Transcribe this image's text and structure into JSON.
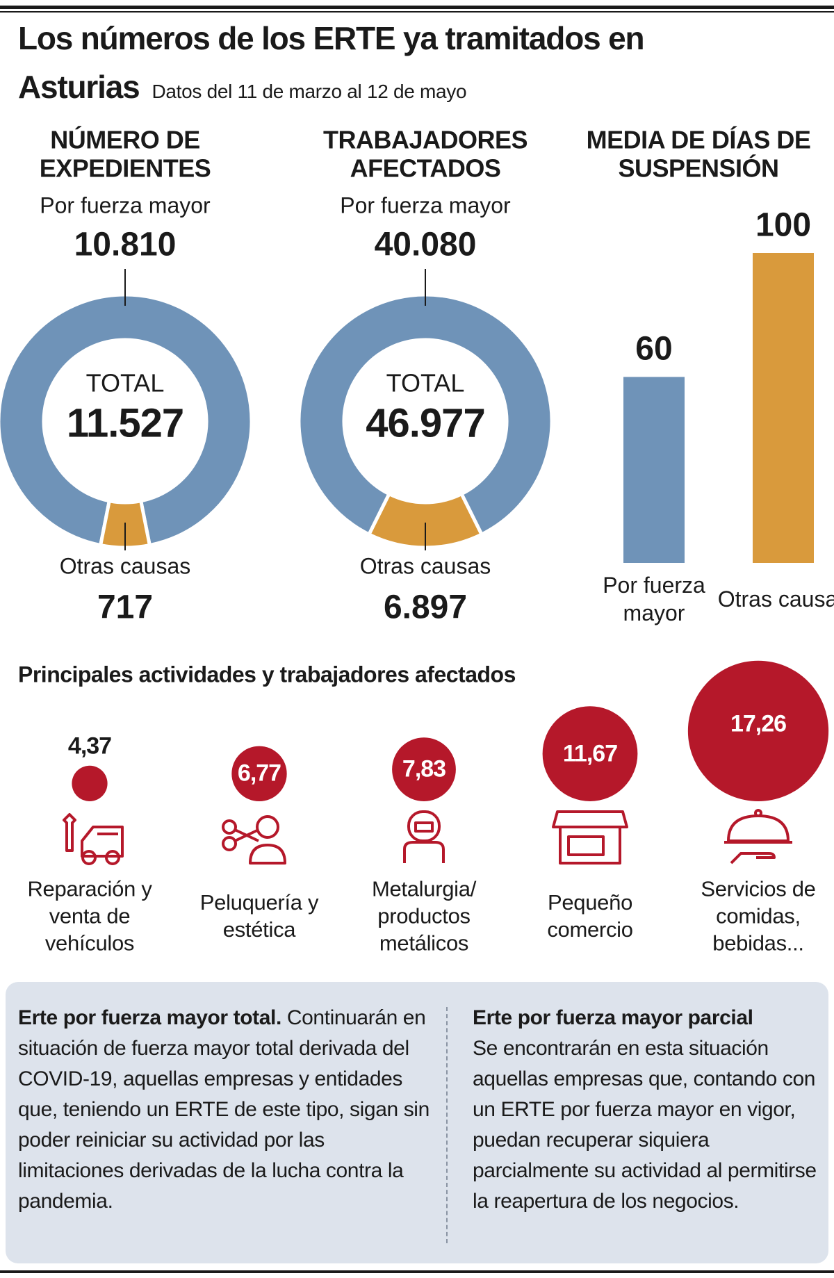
{
  "header": {
    "title": "Los números de los ERTE ya tramitados en Asturias",
    "subtitle": "Datos del 11 de marzo al 12 de mayo"
  },
  "chart_data": [
    {
      "type": "donut",
      "title": "NÚMERO DE EXPEDIENTES",
      "categories": [
        "Por fuerza mayor",
        "Otras causas"
      ],
      "values": [
        10810,
        717
      ],
      "value_labels": [
        "10.810",
        "717"
      ],
      "colors": [
        "#6f93b8",
        "#d99a3c"
      ],
      "total_title": "TOTAL",
      "total": {
        "value": 11527,
        "label": "11.527"
      }
    },
    {
      "type": "donut",
      "title": "TRABAJADORES AFECTADOS",
      "categories": [
        "Por fuerza mayor",
        "Otras causas"
      ],
      "values": [
        40080,
        6897
      ],
      "value_labels": [
        "40.080",
        "6.897"
      ],
      "colors": [
        "#6f93b8",
        "#d99a3c"
      ],
      "total_title": "TOTAL",
      "total": {
        "value": 46977,
        "label": "46.977"
      }
    },
    {
      "type": "bar",
      "title": "MEDIA DE DÍAS DE SUSPENSIÓN",
      "categories": [
        "Por fuerza mayor",
        "Otras causas"
      ],
      "values": [
        60,
        100
      ],
      "colors": [
        "#6f93b8",
        "#d99a3c"
      ],
      "ylim": [
        0,
        100
      ]
    },
    {
      "type": "bubble",
      "title": "Principales actividades y trabajadores afectados",
      "categories": [
        "Reparación y venta de vehículos",
        "Peluquería y estética",
        "Metalurgia/ productos metálicos",
        "Pequeño comercio",
        "Servicios de comidas, bebidas..."
      ],
      "values": [
        4.37,
        6.77,
        7.83,
        11.67,
        17.26
      ],
      "value_labels": [
        "4,37",
        "6,77",
        "7,83",
        "11,67",
        "17,26"
      ],
      "color": "#b5182a"
    }
  ],
  "notes": [
    {
      "title": "Erte por fuerza mayor total.",
      "text": "Continuarán en situación de fuerza mayor total derivada del COVID-19, aquellas empresas y entidades que, teniendo un ERTE de este tipo, sigan sin poder reiniciar su actividad por las limitaciones derivadas de la lucha contra la pandemia."
    },
    {
      "title": "Erte por fuerza mayor parcial",
      "text": "Se encontrarán en esta situación aquellas empresas que, contando con un ERTE por fuerza mayor en vigor, puedan recuperar siquiera parcialmente su actividad al permitirse la reapertura de los negocios."
    }
  ]
}
